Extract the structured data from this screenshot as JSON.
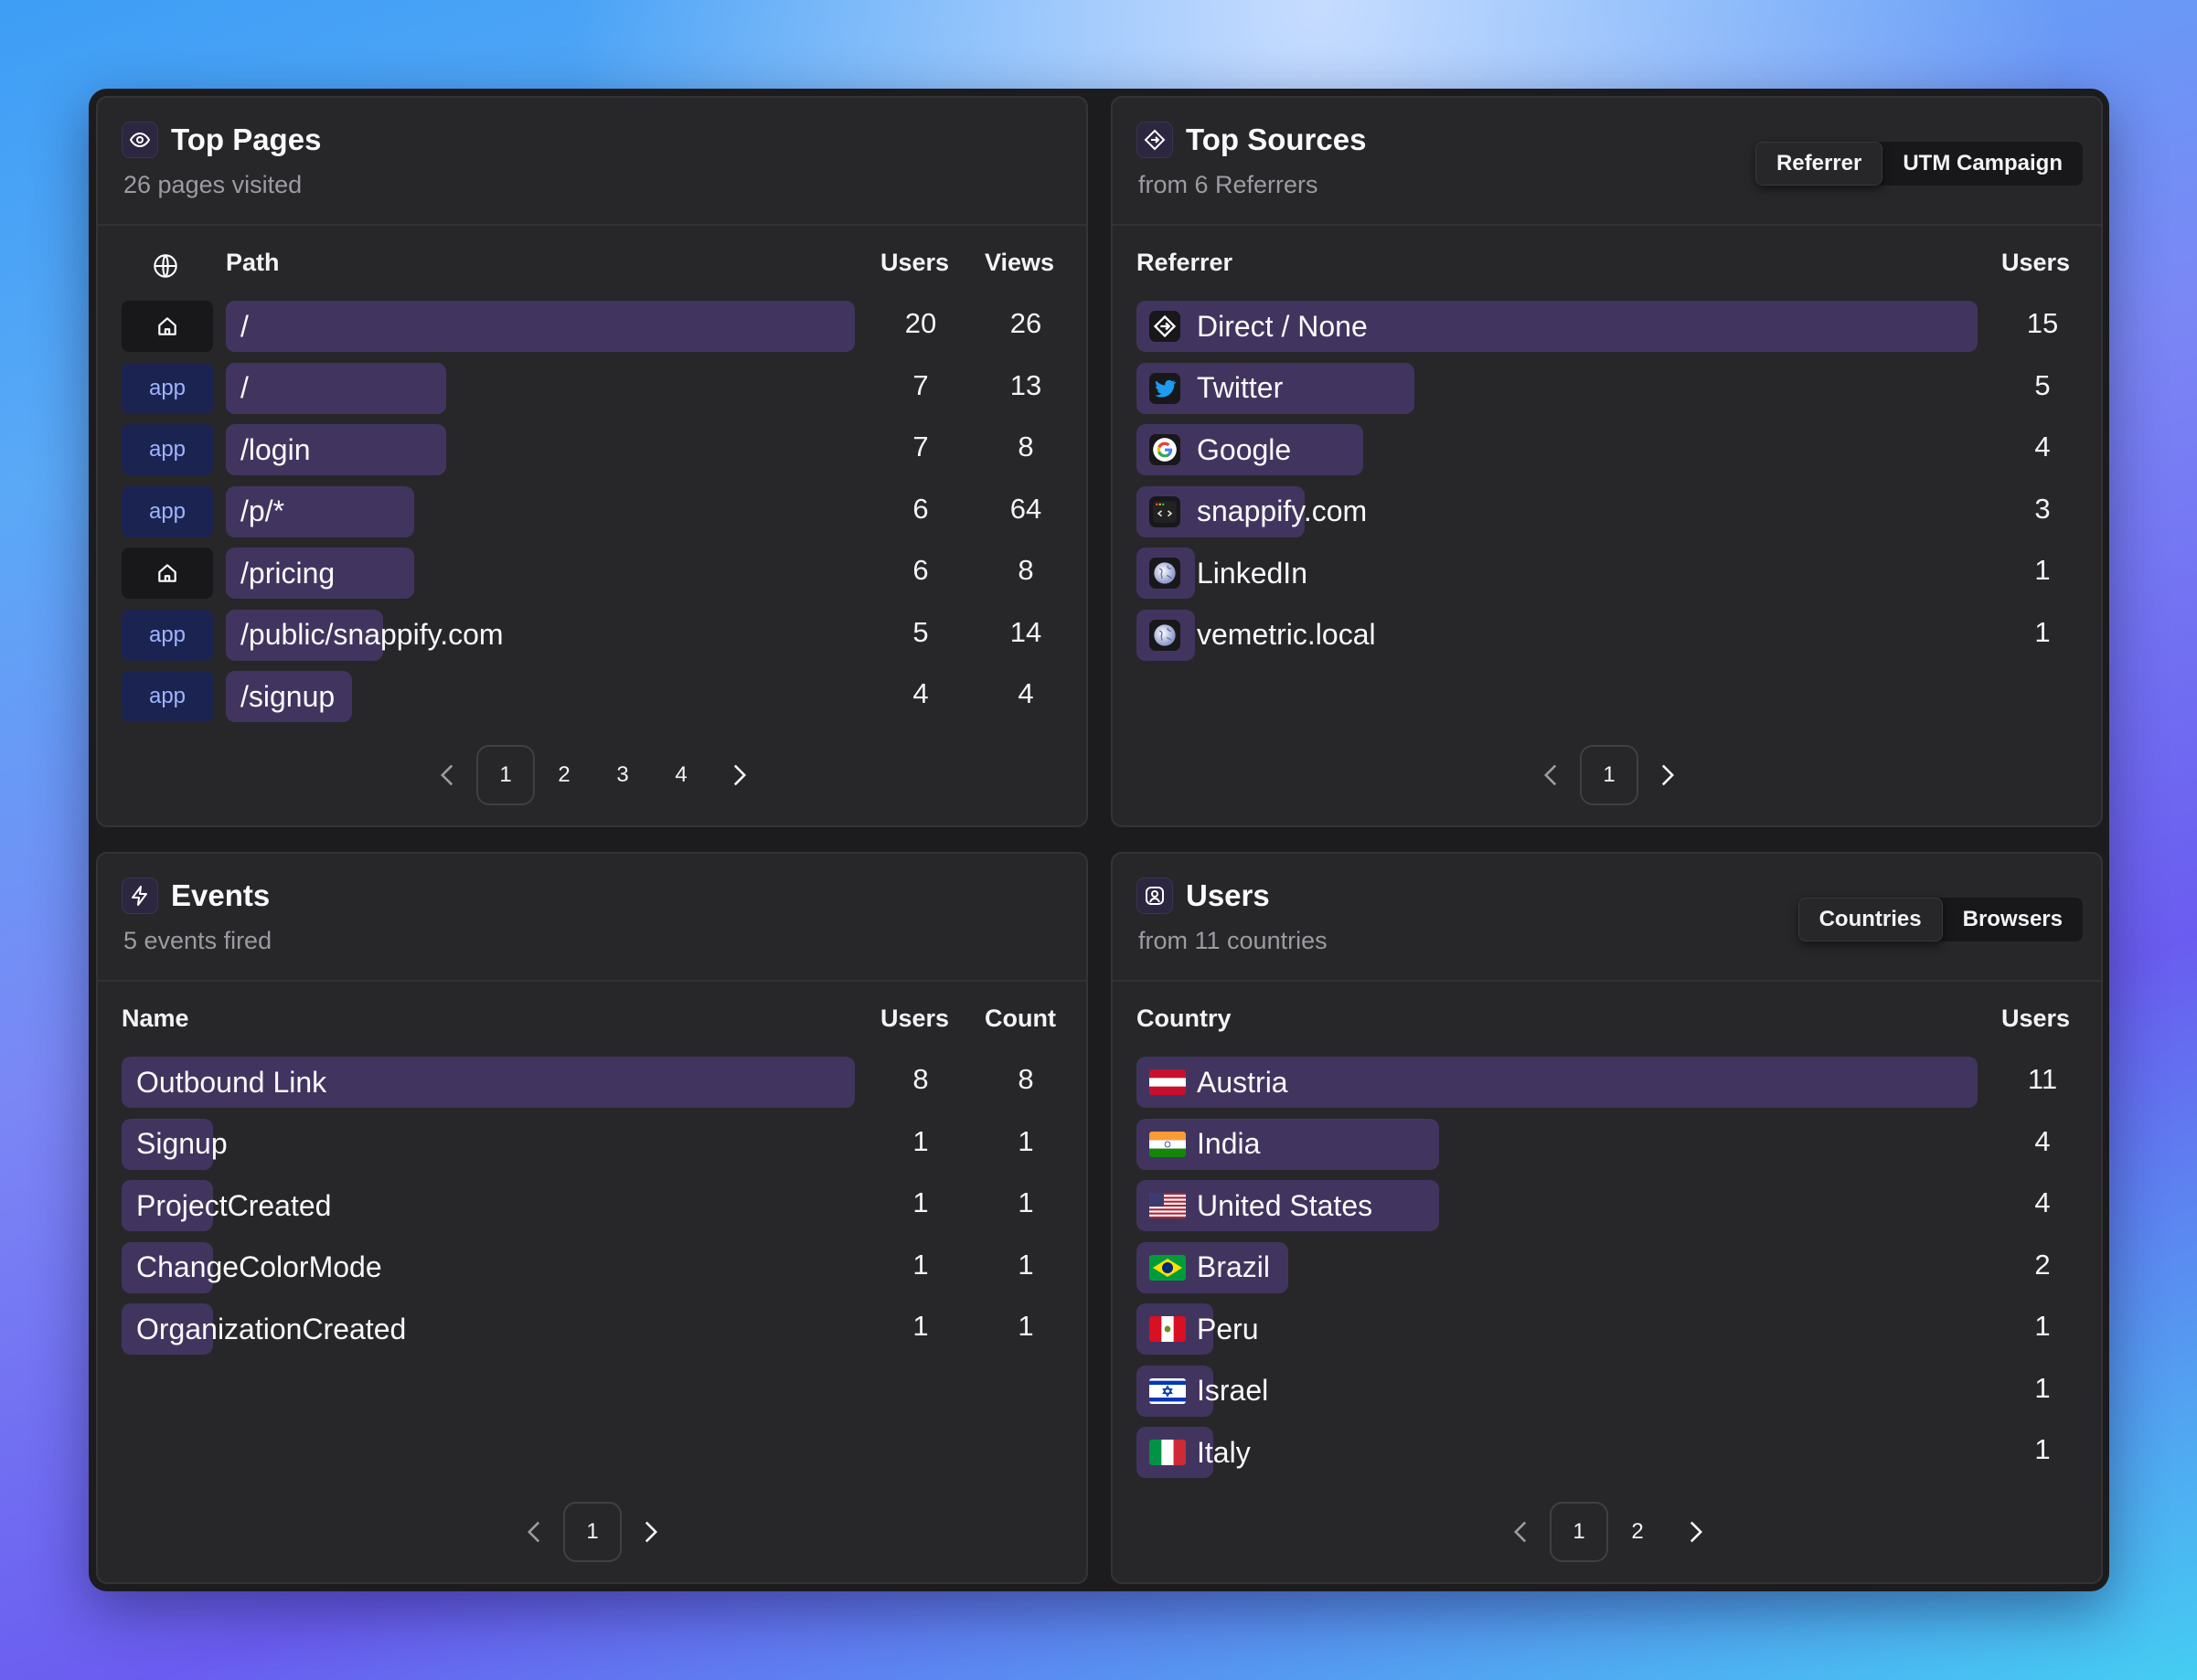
{
  "top_pages": {
    "title": "Top Pages",
    "subtitle": "26 pages visited",
    "icon": "eye-icon",
    "columns": {
      "host": "globe-icon",
      "path": "Path",
      "users": "Users",
      "views": "Views"
    },
    "rows": [
      {
        "host": "home",
        "path": "/",
        "users": "20",
        "views": "26",
        "bar_pct": 100
      },
      {
        "host": "app",
        "path": "/",
        "users": "7",
        "views": "13",
        "bar_pct": 35
      },
      {
        "host": "app",
        "path": "/login",
        "users": "7",
        "views": "8",
        "bar_pct": 35
      },
      {
        "host": "app",
        "path": "/p/*",
        "users": "6",
        "views": "64",
        "bar_pct": 30
      },
      {
        "host": "home",
        "path": "/pricing",
        "users": "6",
        "views": "8",
        "bar_pct": 30
      },
      {
        "host": "app",
        "path": "/public/snappify.com",
        "users": "5",
        "views": "14",
        "bar_pct": 25
      },
      {
        "host": "app",
        "path": "/signup",
        "users": "4",
        "views": "4",
        "bar_pct": 20
      }
    ],
    "app_label": "app",
    "pagination": {
      "pages": [
        "1",
        "2",
        "3",
        "4"
      ],
      "current": "1"
    }
  },
  "top_sources": {
    "title": "Top Sources",
    "subtitle": "from 6 Referrers",
    "icon": "direction-sign-icon",
    "tabs": [
      {
        "label": "Referrer",
        "active": true
      },
      {
        "label": "UTM Campaign",
        "active": false
      }
    ],
    "columns": {
      "referrer": "Referrer",
      "users": "Users"
    },
    "rows": [
      {
        "icon": "direct",
        "name": "Direct / None",
        "users": "15",
        "bar_pct": 100
      },
      {
        "icon": "twitter",
        "name": "Twitter",
        "users": "5",
        "bar_pct": 33
      },
      {
        "icon": "google",
        "name": "Google",
        "users": "4",
        "bar_pct": 27
      },
      {
        "icon": "snappify",
        "name": "snappify.com",
        "users": "3",
        "bar_pct": 20
      },
      {
        "icon": "globe",
        "name": "LinkedIn",
        "users": "1",
        "bar_pct": 7
      },
      {
        "icon": "globe",
        "name": "vemetric.local",
        "users": "1",
        "bar_pct": 7
      }
    ],
    "pagination": {
      "pages": [
        "1"
      ],
      "current": "1"
    }
  },
  "events": {
    "title": "Events",
    "subtitle": "5 events fired",
    "icon": "lightning-icon",
    "columns": {
      "name": "Name",
      "users": "Users",
      "count": "Count"
    },
    "rows": [
      {
        "name": "Outbound Link",
        "users": "8",
        "count": "8",
        "bar_pct": 100
      },
      {
        "name": "Signup",
        "users": "1",
        "count": "1",
        "bar_pct": 12.5
      },
      {
        "name": "ProjectCreated",
        "users": "1",
        "count": "1",
        "bar_pct": 12.5
      },
      {
        "name": "ChangeColorMode",
        "users": "1",
        "count": "1",
        "bar_pct": 12.5
      },
      {
        "name": "OrganizationCreated",
        "users": "1",
        "count": "1",
        "bar_pct": 12.5
      }
    ],
    "pagination": {
      "pages": [
        "1"
      ],
      "current": "1"
    }
  },
  "users": {
    "title": "Users",
    "subtitle": "from 11 countries",
    "icon": "user-badge-icon",
    "tabs": [
      {
        "label": "Countries",
        "active": true
      },
      {
        "label": "Browsers",
        "active": false
      }
    ],
    "columns": {
      "country": "Country",
      "users": "Users"
    },
    "rows": [
      {
        "flag": "AT",
        "name": "Austria",
        "users": "11",
        "bar_pct": 100
      },
      {
        "flag": "IN",
        "name": "India",
        "users": "4",
        "bar_pct": 36
      },
      {
        "flag": "US",
        "name": "United States",
        "users": "4",
        "bar_pct": 36
      },
      {
        "flag": "BR",
        "name": "Brazil",
        "users": "2",
        "bar_pct": 18
      },
      {
        "flag": "PE",
        "name": "Peru",
        "users": "1",
        "bar_pct": 9
      },
      {
        "flag": "IL",
        "name": "Israel",
        "users": "1",
        "bar_pct": 9
      },
      {
        "flag": "IT",
        "name": "Italy",
        "users": "1",
        "bar_pct": 9
      }
    ],
    "pagination": {
      "pages": [
        "1",
        "2"
      ],
      "current": "1"
    }
  },
  "colors": {
    "bar": "#41355f",
    "panel": "#27272a",
    "frame": "#1c1c1f",
    "app_badge": "#1b2450",
    "app_text": "#9fb4ff"
  }
}
